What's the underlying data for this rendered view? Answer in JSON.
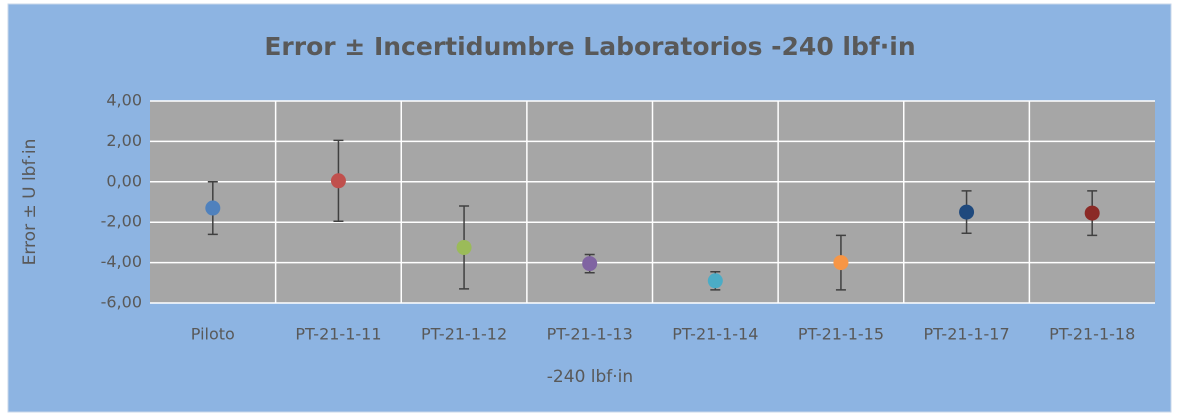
{
  "chart_data": {
    "type": "errorbar",
    "title": "Error ± Incertidumbre Laboratorios -240 lbf·in",
    "x_label": "-240 lbf·in",
    "y_label": "Error ± U lbf·in",
    "categories": [
      "Piloto",
      "PT-21-1-11",
      "PT-21-1-12",
      "PT-21-1-13",
      "PT-21-1-14",
      "PT-21-1-15",
      "PT-21-1-17",
      "PT-21-1-18"
    ],
    "values": [
      -1.3,
      0.05,
      -3.25,
      -4.05,
      -4.9,
      -4.0,
      -1.5,
      -1.55
    ],
    "errors": [
      1.3,
      2.0,
      2.05,
      0.45,
      0.45,
      1.35,
      1.05,
      1.1
    ],
    "colors": [
      "#4f81bd",
      "#c0504d",
      "#9bbb59",
      "#8064a2",
      "#4bacc6",
      "#f79646",
      "#1f497d",
      "#8b2a26"
    ],
    "ylim": [
      -6,
      4
    ],
    "yticks": [
      {
        "value": -6,
        "label": "-6,00"
      },
      {
        "value": -4,
        "label": "-4,00"
      },
      {
        "value": -2,
        "label": "-2,00"
      },
      {
        "value": 0,
        "label": "0,00"
      },
      {
        "value": 2,
        "label": "2,00"
      },
      {
        "value": 4,
        "label": "4,00"
      }
    ],
    "grid": true
  }
}
